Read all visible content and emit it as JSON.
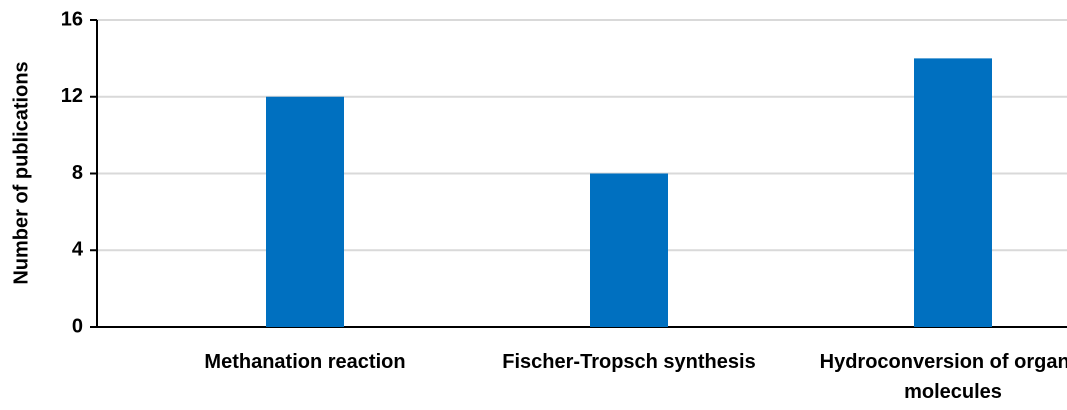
{
  "chart_data": {
    "type": "bar",
    "y_label": "Number of publications",
    "categories": [
      "Methanation reaction",
      "Fischer-Tropsch synthesis",
      "Hydroconversion of organic molecules"
    ],
    "values": [
      12,
      8,
      14
    ],
    "color": "#0070c0",
    "ylim": [
      0,
      16
    ],
    "yticks": [
      0,
      4,
      8,
      12,
      16
    ],
    "grid": true
  }
}
